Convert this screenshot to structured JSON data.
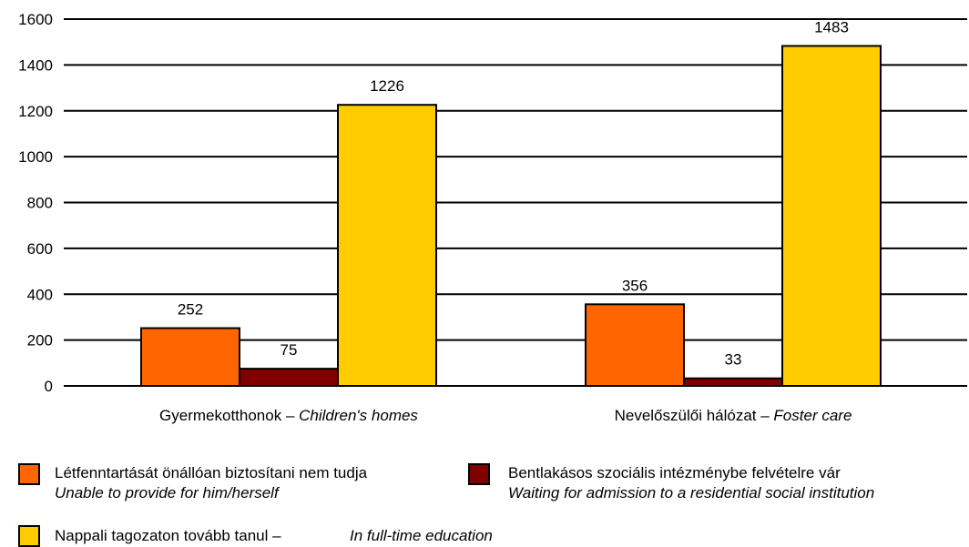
{
  "chart_data": {
    "type": "bar",
    "categories": [
      {
        "hu": "Gyermekotthonok",
        "sep": " – ",
        "en": "Children's homes"
      },
      {
        "hu": "Nevelőszülői hálózat",
        "sep": " – ",
        "en": "Foster care"
      }
    ],
    "series": [
      {
        "name_hu": "Létfenntartását önállóan biztosítani nem tudja",
        "name_en": "Unable to provide for him/herself",
        "color": "#ff6600",
        "values": [
          252,
          356
        ]
      },
      {
        "name_hu": "Bentlakásos szociális intézménybe felvételre vár",
        "name_en": "Waiting for admission to a residential social institution",
        "color": "#800000",
        "values": [
          75,
          33
        ]
      },
      {
        "name_hu": "Nappali tagozaton tovább tanul –",
        "name_en": "In full-time education",
        "color": "#ffcc00",
        "values": [
          1226,
          1483
        ]
      }
    ],
    "ylim": [
      0,
      1600
    ],
    "yticks": [
      "0",
      "200",
      "400",
      "600",
      "800",
      "1000",
      "1200",
      "1400",
      "1600"
    ],
    "grid": true,
    "legend_position": "bottom"
  }
}
